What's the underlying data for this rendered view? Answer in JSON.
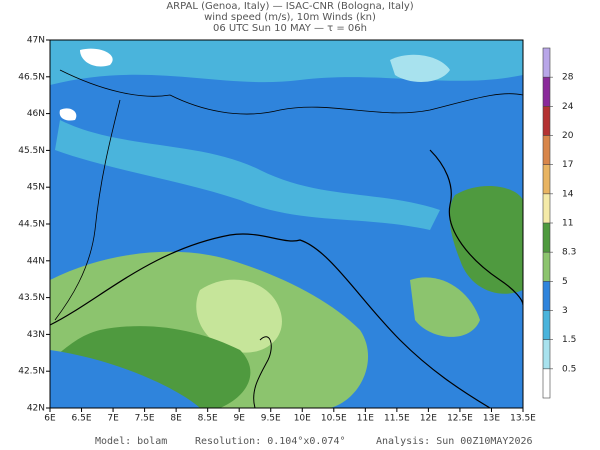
{
  "header": {
    "lines": [
      "ARPAL (Genoa, Italy)  —  ISAC-CNR (Bologna, Italy)",
      "wind speed (m/s), 10m Winds (kn)",
      "06 UTC Sun 10 MAY  —  τ = 06h"
    ]
  },
  "map": {
    "lon_ticks": [
      {
        "value": 6,
        "label": "6E"
      },
      {
        "value": 6.5,
        "label": "6.5E"
      },
      {
        "value": 7,
        "label": "7E"
      },
      {
        "value": 7.5,
        "label": "7.5E"
      },
      {
        "value": 8,
        "label": "8E"
      },
      {
        "value": 8.5,
        "label": "8.5E"
      },
      {
        "value": 9,
        "label": "9E"
      },
      {
        "value": 9.5,
        "label": "9.5E"
      },
      {
        "value": 10,
        "label": "10E"
      },
      {
        "value": 10.5,
        "label": "10.5E"
      },
      {
        "value": 11,
        "label": "11E"
      },
      {
        "value": 11.5,
        "label": "11.5E"
      },
      {
        "value": 12,
        "label": "12E"
      },
      {
        "value": 12.5,
        "label": "12.5E"
      },
      {
        "value": 13,
        "label": "13E"
      },
      {
        "value": 13.5,
        "label": "13.5E"
      }
    ],
    "lat_ticks": [
      {
        "value": 42,
        "label": "42N"
      },
      {
        "value": 42.5,
        "label": "42.5N"
      },
      {
        "value": 43,
        "label": "43N"
      },
      {
        "value": 43.5,
        "label": "43.5N"
      },
      {
        "value": 44,
        "label": "44N"
      },
      {
        "value": 44.5,
        "label": "44.5N"
      },
      {
        "value": 45,
        "label": "45N"
      },
      {
        "value": 45.5,
        "label": "45.5N"
      },
      {
        "value": 46,
        "label": "46N"
      },
      {
        "value": 46.5,
        "label": "46.5N"
      },
      {
        "value": 47,
        "label": "47N"
      }
    ]
  },
  "colorbar": {
    "ticks": [
      0.5,
      1.5,
      3,
      5,
      8.3,
      11,
      14,
      17,
      20,
      24,
      28
    ],
    "colors": [
      "#ffffff",
      "#a8e2ee",
      "#4ab4dc",
      "#2f84dc",
      "#8cc46e",
      "#4f9a3f",
      "#f4eaa8",
      "#e8b462",
      "#d8864a",
      "#b43232",
      "#8a2a9a",
      "#b8a6e8"
    ]
  },
  "footer": {
    "model": "Model: bolam",
    "resolution": "Resolution: 0.104°x0.074°",
    "analysis": "Analysis: Sun 00Z10MAY2026"
  }
}
